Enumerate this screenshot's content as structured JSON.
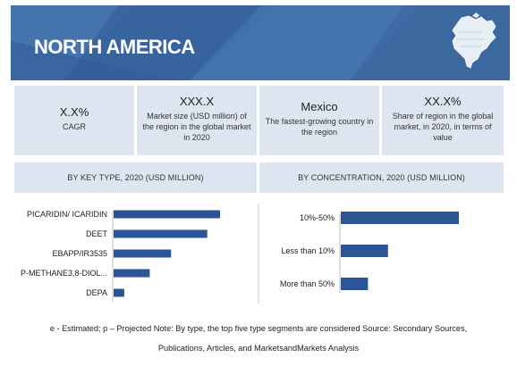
{
  "header": {
    "title": "NORTH AMERICA"
  },
  "kpis": [
    {
      "value": "X.X%",
      "desc": "CAGR"
    },
    {
      "value": "XXX.X",
      "desc": "Market size (USD million) of the region in the global market in 2020"
    },
    {
      "value": "Mexico",
      "desc": "The fastest-growing country in the region"
    },
    {
      "value": "XX.X%",
      "desc": "Share of region in the global market, in 2020, in terms of value"
    }
  ],
  "sections": {
    "left": "BY KEY TYPE, 2020 (USD MILLION)",
    "right": "BY CONCENTRATION, 2020 (USD MILLION)"
  },
  "colors": {
    "banner": "#3f6ba3",
    "bar": "#2b5597",
    "panel": "#dde6f0"
  },
  "chart_data": [
    {
      "type": "bar",
      "orientation": "horizontal",
      "title": "BY KEY TYPE, 2020 (USD MILLION)",
      "categories": [
        "PICARIDIN/ ICARIDIN",
        "DEET",
        "EBAPP/IR3535",
        "P-METHANE3,8-DIOL...",
        "DEPA"
      ],
      "values": [
        100,
        88,
        54,
        34,
        10
      ],
      "value_axis_shown": false
    },
    {
      "type": "bar",
      "orientation": "horizontal",
      "title": "BY CONCENTRATION, 2020 (USD MILLION)",
      "categories": [
        "10%-50%",
        "Less than 10%",
        "More than 50%"
      ],
      "values": [
        100,
        40,
        23
      ],
      "value_axis_shown": false
    }
  ],
  "footnote": {
    "line1": "e - Estimated; p – Projected Note: By type, the top five type segments are considered  Source: Secondary Sources,",
    "line2": "Publications, Articles, and MarketsandMarkets Analysis"
  }
}
